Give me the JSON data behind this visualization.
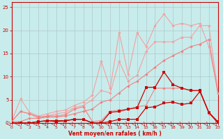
{
  "x": [
    0,
    1,
    2,
    3,
    4,
    5,
    6,
    7,
    8,
    9,
    10,
    11,
    12,
    13,
    14,
    15,
    16,
    17,
    18,
    19,
    20,
    21,
    22,
    23
  ],
  "line_lp1": [
    0.3,
    5.2,
    2.3,
    1.5,
    2.0,
    2.5,
    2.8,
    3.8,
    4.5,
    6.0,
    13.3,
    7.5,
    19.5,
    10.5,
    19.5,
    16.5,
    21.0,
    23.5,
    21.0,
    21.5,
    21.0,
    21.5,
    16.5,
    7.0
  ],
  "line_lp2": [
    0.3,
    2.5,
    2.0,
    1.0,
    1.5,
    2.0,
    2.3,
    3.3,
    3.8,
    5.0,
    7.0,
    6.5,
    13.3,
    9.0,
    10.3,
    15.5,
    17.5,
    17.5,
    17.5,
    18.5,
    18.5,
    21.0,
    21.0,
    7.0
  ],
  "line_mp1": [
    0.3,
    2.5,
    2.0,
    1.3,
    1.5,
    1.5,
    1.8,
    3.0,
    3.5,
    0.3,
    0.5,
    2.5,
    2.8,
    3.0,
    3.5,
    3.8,
    7.5,
    7.5,
    7.5,
    7.5,
    7.0,
    7.0,
    2.0,
    0.3
  ],
  "line_mp2": [
    0.3,
    0.3,
    1.0,
    1.0,
    1.3,
    1.3,
    1.5,
    2.0,
    2.5,
    3.0,
    4.5,
    5.0,
    6.5,
    8.0,
    9.0,
    10.5,
    12.0,
    13.5,
    14.5,
    15.5,
    16.5,
    17.0,
    18.0,
    6.5
  ],
  "line_dr1": [
    0.0,
    0.0,
    0.0,
    0.3,
    0.5,
    0.5,
    0.5,
    0.8,
    0.8,
    0.0,
    0.0,
    2.3,
    2.5,
    3.0,
    3.3,
    7.7,
    7.7,
    11.0,
    8.3,
    7.5,
    7.0,
    7.0,
    2.3,
    0.3
  ],
  "line_dr2": [
    0.0,
    0.0,
    0.0,
    0.3,
    0.5,
    0.3,
    0.5,
    0.8,
    0.8,
    0.0,
    0.0,
    0.3,
    0.8,
    0.8,
    0.8,
    3.3,
    3.5,
    4.3,
    4.5,
    4.0,
    4.3,
    6.8,
    2.3,
    0.0
  ],
  "color_light_pink": "#f5a0a0",
  "color_medium_pink": "#f08080",
  "color_dark_red": "#cc0000",
  "background_color": "#c8ecec",
  "grid_color": "#b0c8c8",
  "xlabel": "Vent moyen/en rafales ( km/h )",
  "ylim": [
    0,
    26
  ],
  "xlim": [
    0,
    23
  ],
  "yticks": [
    0,
    5,
    10,
    15,
    20,
    25
  ],
  "xticks": [
    0,
    1,
    2,
    3,
    4,
    5,
    6,
    7,
    8,
    9,
    10,
    11,
    12,
    13,
    14,
    15,
    16,
    17,
    18,
    19,
    20,
    21,
    22,
    23
  ]
}
